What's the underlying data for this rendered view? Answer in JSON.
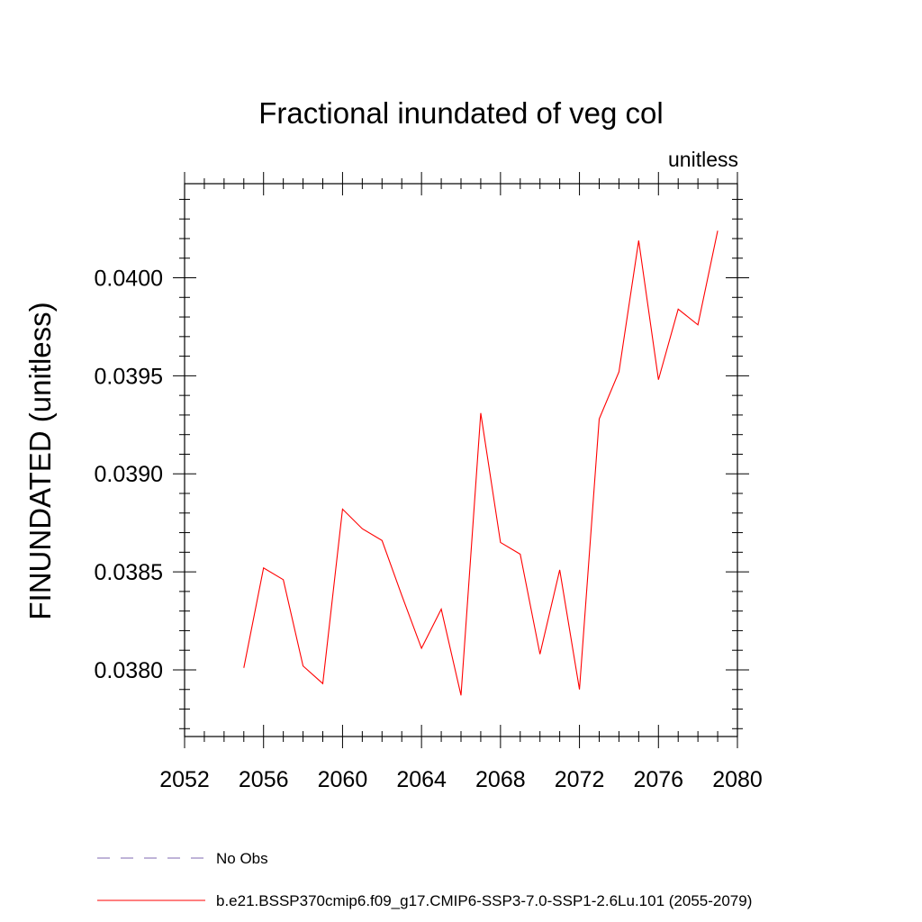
{
  "chart_data": {
    "type": "line",
    "title": "Fractional inundated of veg col",
    "units_label": "unitless",
    "ylabel": "FINUNDATED  (unitless)",
    "xlabel": "",
    "xlim": [
      2052,
      2080
    ],
    "ylim": [
      0.03766,
      0.04048
    ],
    "x_ticks": [
      2052,
      2056,
      2060,
      2064,
      2068,
      2072,
      2076,
      2080
    ],
    "x_tick_labels": [
      "2052",
      "2056",
      "2060",
      "2064",
      "2068",
      "2072",
      "2076",
      "2080"
    ],
    "y_ticks": [
      0.038,
      0.0385,
      0.039,
      0.0395,
      0.04
    ],
    "y_tick_labels": [
      "0.0380",
      "0.0385",
      "0.0390",
      "0.0395",
      "0.0400"
    ],
    "grid": false,
    "legend_placement": "bottom",
    "series": [
      {
        "name": "b.e21.BSSP370cmip6.f09_g17.CMIP6-SSP3-7.0-SSP1-2.6Lu.101 (2055-2079)",
        "color": "#ff0000",
        "style": "solid",
        "x": [
          2055,
          2056,
          2057,
          2058,
          2059,
          2060,
          2061,
          2062,
          2063,
          2064,
          2065,
          2066,
          2067,
          2068,
          2069,
          2070,
          2071,
          2072,
          2073,
          2074,
          2075,
          2076,
          2077,
          2078,
          2079
        ],
        "y": [
          0.03801,
          0.03852,
          0.03846,
          0.03802,
          0.03793,
          0.03882,
          0.03872,
          0.03866,
          0.03838,
          0.03811,
          0.03831,
          0.03787,
          0.03931,
          0.03865,
          0.03859,
          0.03808,
          0.03851,
          0.0379,
          0.03928,
          0.03952,
          0.04019,
          0.03948,
          0.03984,
          0.03976,
          0.04024
        ]
      },
      {
        "name": "No Obs",
        "color": "#7f6ab0",
        "style": "dashed",
        "x": [],
        "y": []
      }
    ]
  }
}
